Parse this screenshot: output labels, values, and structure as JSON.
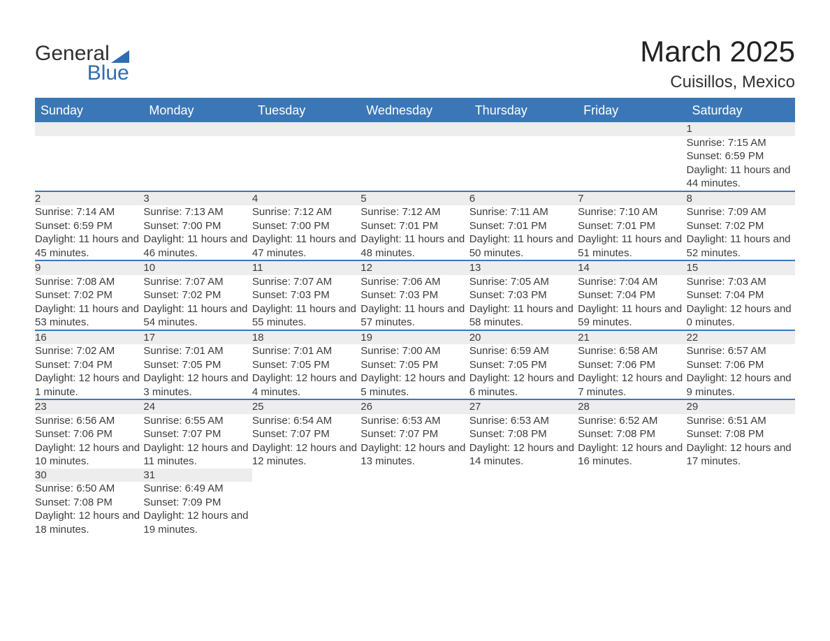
{
  "logo": {
    "text1": "General",
    "text2": "Blue",
    "triangle_color": "#2f6db3"
  },
  "title": "March 2025",
  "location": "Cuisillos, Mexico",
  "colors": {
    "header_bg": "#3b77b7",
    "header_text": "#ffffff",
    "daynum_bg": "#ededed",
    "row_border": "#3b77b7",
    "body_text": "#3c3c3c",
    "background": "#ffffff"
  },
  "typography": {
    "title_fontsize": 42,
    "location_fontsize": 24,
    "header_fontsize": 18,
    "daynum_fontsize": 18,
    "cell_fontsize": 15,
    "font_family": "Arial"
  },
  "calendar": {
    "columns": [
      "Sunday",
      "Monday",
      "Tuesday",
      "Wednesday",
      "Thursday",
      "Friday",
      "Saturday"
    ],
    "weeks": [
      [
        null,
        null,
        null,
        null,
        null,
        null,
        {
          "n": "1",
          "sr": "7:15 AM",
          "ss": "6:59 PM",
          "dl": "11 hours and 44 minutes."
        }
      ],
      [
        {
          "n": "2",
          "sr": "7:14 AM",
          "ss": "6:59 PM",
          "dl": "11 hours and 45 minutes."
        },
        {
          "n": "3",
          "sr": "7:13 AM",
          "ss": "7:00 PM",
          "dl": "11 hours and 46 minutes."
        },
        {
          "n": "4",
          "sr": "7:12 AM",
          "ss": "7:00 PM",
          "dl": "11 hours and 47 minutes."
        },
        {
          "n": "5",
          "sr": "7:12 AM",
          "ss": "7:01 PM",
          "dl": "11 hours and 48 minutes."
        },
        {
          "n": "6",
          "sr": "7:11 AM",
          "ss": "7:01 PM",
          "dl": "11 hours and 50 minutes."
        },
        {
          "n": "7",
          "sr": "7:10 AM",
          "ss": "7:01 PM",
          "dl": "11 hours and 51 minutes."
        },
        {
          "n": "8",
          "sr": "7:09 AM",
          "ss": "7:02 PM",
          "dl": "11 hours and 52 minutes."
        }
      ],
      [
        {
          "n": "9",
          "sr": "7:08 AM",
          "ss": "7:02 PM",
          "dl": "11 hours and 53 minutes."
        },
        {
          "n": "10",
          "sr": "7:07 AM",
          "ss": "7:02 PM",
          "dl": "11 hours and 54 minutes."
        },
        {
          "n": "11",
          "sr": "7:07 AM",
          "ss": "7:03 PM",
          "dl": "11 hours and 55 minutes."
        },
        {
          "n": "12",
          "sr": "7:06 AM",
          "ss": "7:03 PM",
          "dl": "11 hours and 57 minutes."
        },
        {
          "n": "13",
          "sr": "7:05 AM",
          "ss": "7:03 PM",
          "dl": "11 hours and 58 minutes."
        },
        {
          "n": "14",
          "sr": "7:04 AM",
          "ss": "7:04 PM",
          "dl": "11 hours and 59 minutes."
        },
        {
          "n": "15",
          "sr": "7:03 AM",
          "ss": "7:04 PM",
          "dl": "12 hours and 0 minutes."
        }
      ],
      [
        {
          "n": "16",
          "sr": "7:02 AM",
          "ss": "7:04 PM",
          "dl": "12 hours and 1 minute."
        },
        {
          "n": "17",
          "sr": "7:01 AM",
          "ss": "7:05 PM",
          "dl": "12 hours and 3 minutes."
        },
        {
          "n": "18",
          "sr": "7:01 AM",
          "ss": "7:05 PM",
          "dl": "12 hours and 4 minutes."
        },
        {
          "n": "19",
          "sr": "7:00 AM",
          "ss": "7:05 PM",
          "dl": "12 hours and 5 minutes."
        },
        {
          "n": "20",
          "sr": "6:59 AM",
          "ss": "7:05 PM",
          "dl": "12 hours and 6 minutes."
        },
        {
          "n": "21",
          "sr": "6:58 AM",
          "ss": "7:06 PM",
          "dl": "12 hours and 7 minutes."
        },
        {
          "n": "22",
          "sr": "6:57 AM",
          "ss": "7:06 PM",
          "dl": "12 hours and 9 minutes."
        }
      ],
      [
        {
          "n": "23",
          "sr": "6:56 AM",
          "ss": "7:06 PM",
          "dl": "12 hours and 10 minutes."
        },
        {
          "n": "24",
          "sr": "6:55 AM",
          "ss": "7:07 PM",
          "dl": "12 hours and 11 minutes."
        },
        {
          "n": "25",
          "sr": "6:54 AM",
          "ss": "7:07 PM",
          "dl": "12 hours and 12 minutes."
        },
        {
          "n": "26",
          "sr": "6:53 AM",
          "ss": "7:07 PM",
          "dl": "12 hours and 13 minutes."
        },
        {
          "n": "27",
          "sr": "6:53 AM",
          "ss": "7:08 PM",
          "dl": "12 hours and 14 minutes."
        },
        {
          "n": "28",
          "sr": "6:52 AM",
          "ss": "7:08 PM",
          "dl": "12 hours and 16 minutes."
        },
        {
          "n": "29",
          "sr": "6:51 AM",
          "ss": "7:08 PM",
          "dl": "12 hours and 17 minutes."
        }
      ],
      [
        {
          "n": "30",
          "sr": "6:50 AM",
          "ss": "7:08 PM",
          "dl": "12 hours and 18 minutes."
        },
        {
          "n": "31",
          "sr": "6:49 AM",
          "ss": "7:09 PM",
          "dl": "12 hours and 19 minutes."
        },
        null,
        null,
        null,
        null,
        null
      ]
    ],
    "labels": {
      "sunrise": "Sunrise: ",
      "sunset": "Sunset: ",
      "daylight": "Daylight: "
    }
  }
}
